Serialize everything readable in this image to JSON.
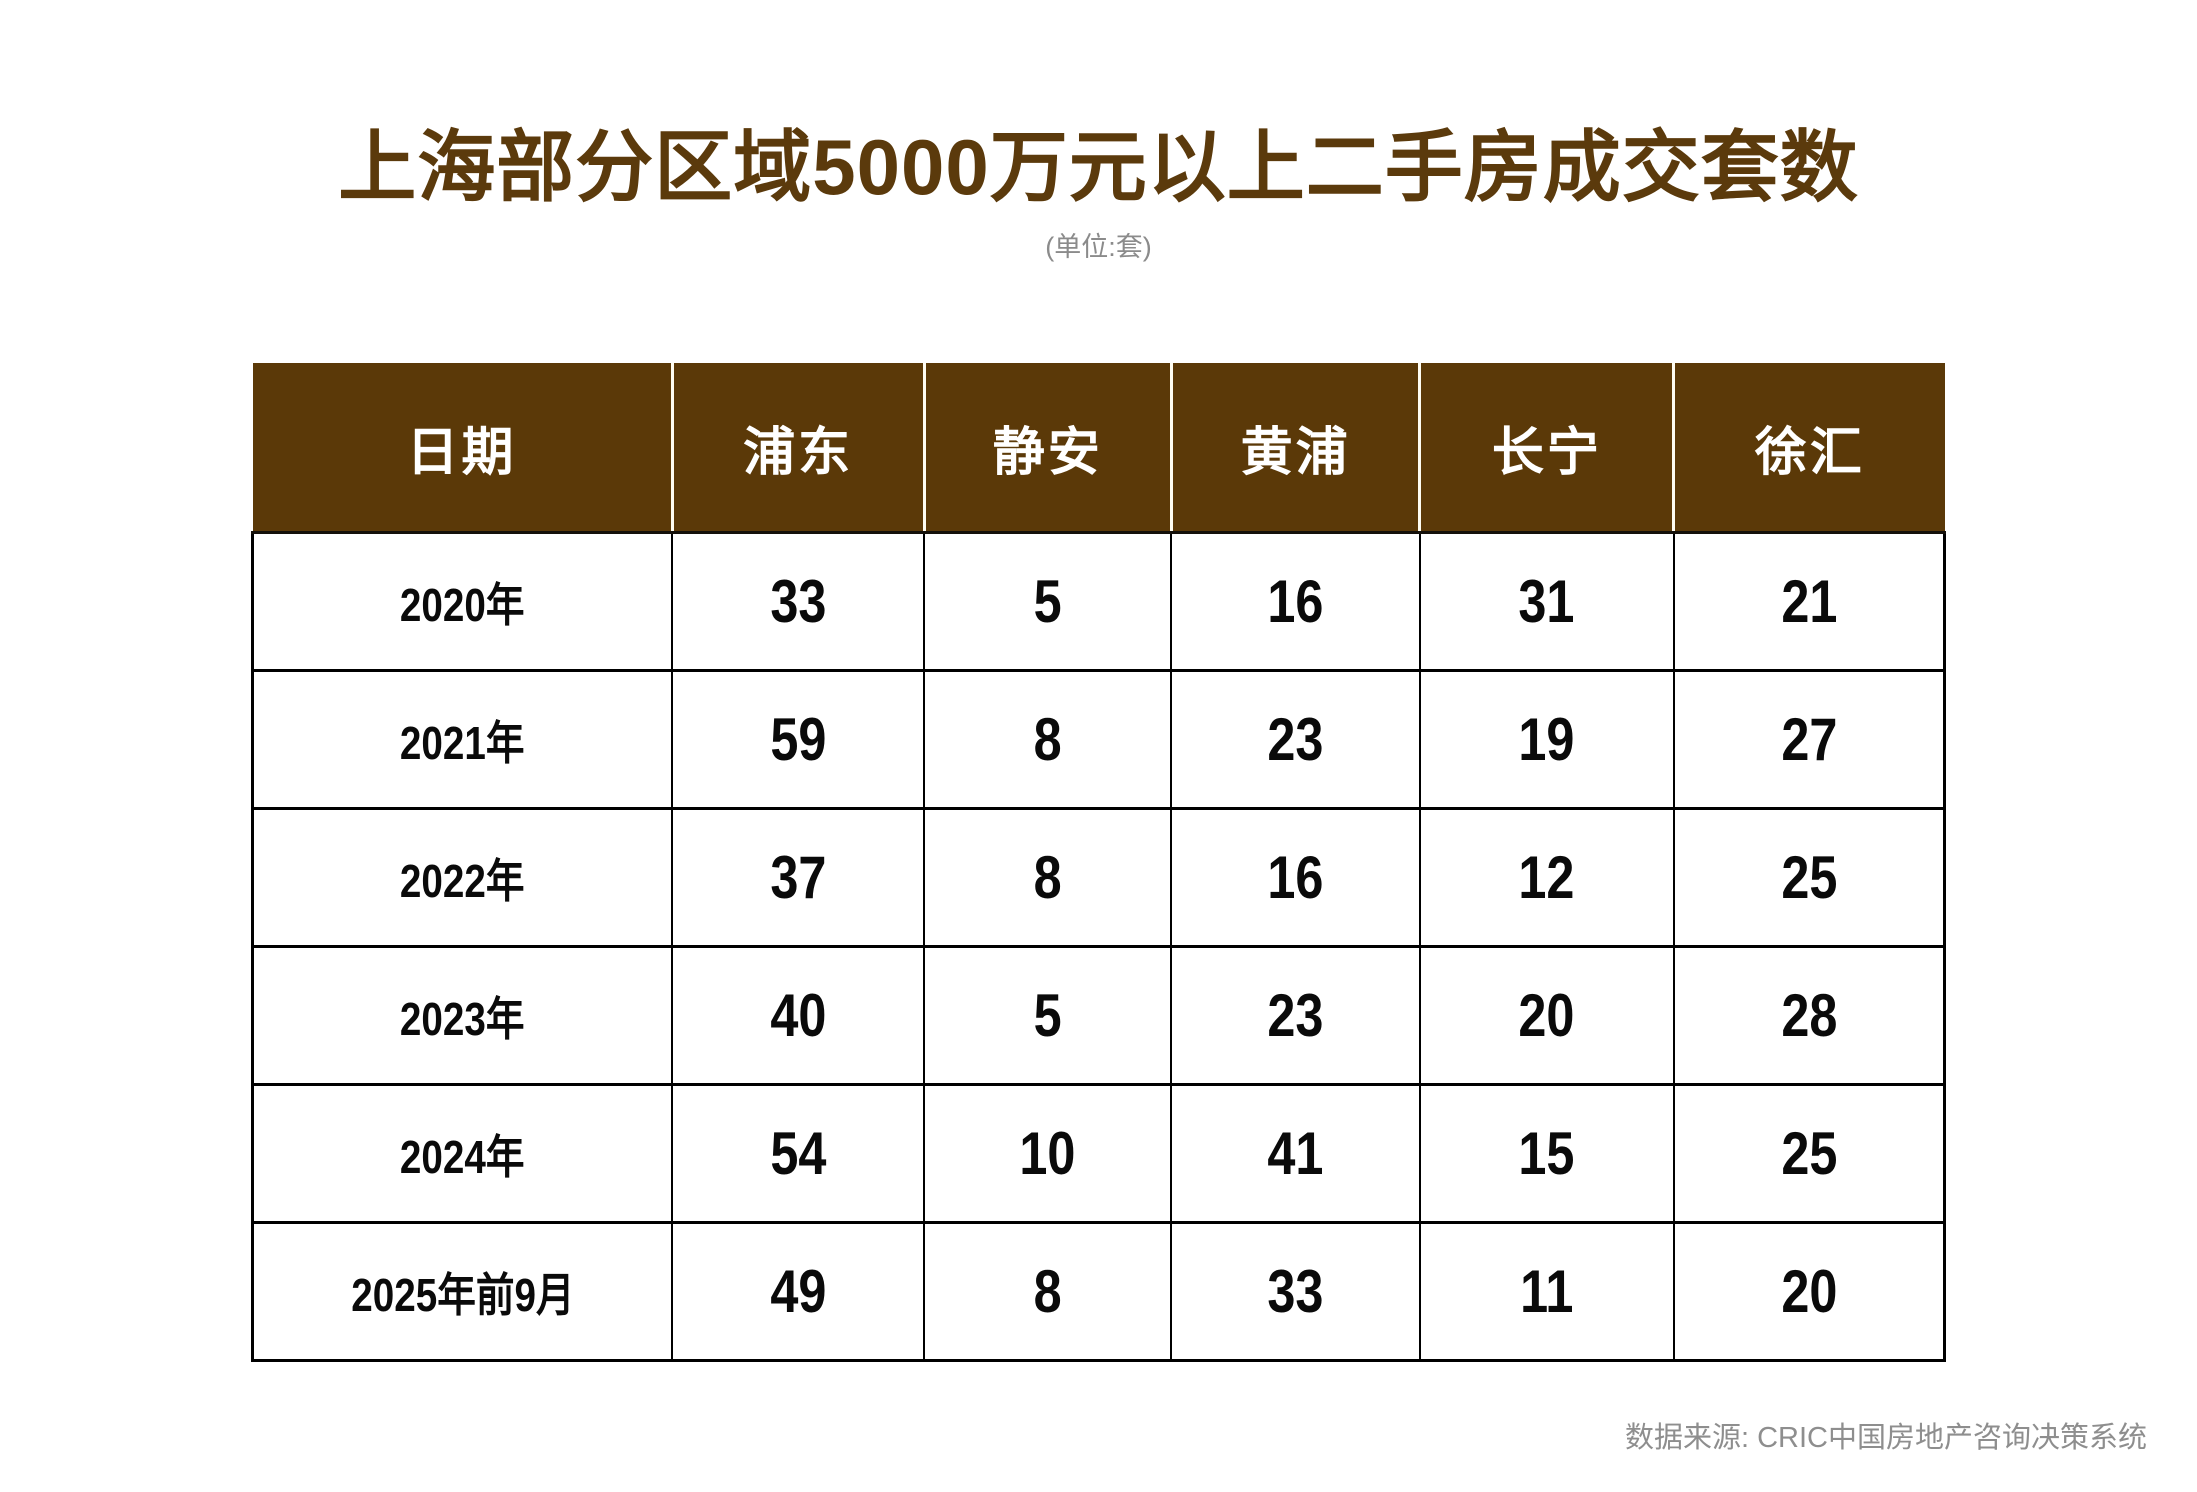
{
  "title": "上海部分区域5000万元以上二手房成交套数",
  "subtitle": "(单位:套)",
  "source": "数据来源: CRIC中国房地产咨询决策系统",
  "colors": {
    "header_background": "#5b3908",
    "title_text": "#5b3a0c",
    "header_text": "#ffffff",
    "body_text": "#0a0a0a",
    "muted_text": "#8e8e8e",
    "body_border": "#000000",
    "header_separator": "#fffdf2"
  },
  "chart_data": {
    "type": "table",
    "title": "上海部分区域5000万元以上二手房成交套数",
    "unit": "套",
    "columns": [
      "日期",
      "浦东",
      "静安",
      "黄浦",
      "长宁",
      "徐汇"
    ],
    "rows": [
      {
        "label": "2020年",
        "values": [
          33,
          5,
          16,
          31,
          21
        ]
      },
      {
        "label": "2021年",
        "values": [
          59,
          8,
          23,
          19,
          27
        ]
      },
      {
        "label": "2022年",
        "values": [
          37,
          8,
          16,
          12,
          25
        ]
      },
      {
        "label": "2023年",
        "values": [
          40,
          5,
          23,
          20,
          28
        ]
      },
      {
        "label": "2024年",
        "values": [
          54,
          10,
          41,
          15,
          25
        ]
      },
      {
        "label": "2025年前9月",
        "values": [
          49,
          8,
          33,
          11,
          20
        ]
      }
    ]
  }
}
